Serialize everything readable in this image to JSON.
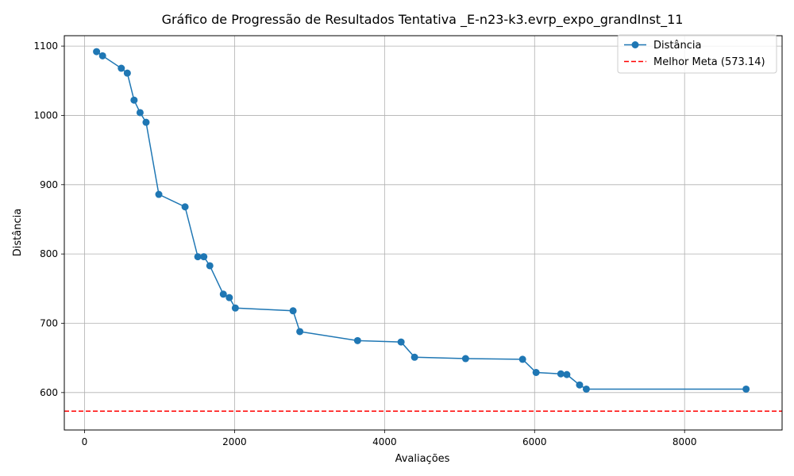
{
  "chart_data": {
    "type": "line",
    "title": "Gráfico de Progressão de Resultados Tentativa _E-n23-k3.evrp_expo_grandInst_11",
    "xlabel": "Avaliações",
    "ylabel": "Distância",
    "xlim": [
      -270,
      9300
    ],
    "ylim": [
      546,
      1115
    ],
    "xticks": [
      0,
      2000,
      4000,
      6000,
      8000
    ],
    "yticks": [
      600,
      700,
      800,
      900,
      1000,
      1100
    ],
    "grid": true,
    "legend_position": "top-right",
    "series": [
      {
        "name": "Distância",
        "color": "#1f77b4",
        "marker": "circle",
        "x": [
          160,
          240,
          490,
          570,
          660,
          740,
          820,
          990,
          1340,
          1510,
          1590,
          1670,
          1850,
          1930,
          2010,
          2780,
          2870,
          3640,
          4220,
          4400,
          5080,
          5840,
          6020,
          6350,
          6430,
          6600,
          6690,
          8820
        ],
        "y": [
          1092,
          1086,
          1068,
          1061,
          1022,
          1004,
          990,
          886,
          868,
          796,
          796,
          783,
          742,
          737,
          722,
          718,
          688,
          675,
          673,
          651,
          649,
          648,
          629,
          627,
          626,
          611,
          605,
          605
        ]
      }
    ],
    "reference_line": {
      "name": "Melhor Meta (573.14)",
      "value": 573.14,
      "color": "#ff0000",
      "style": "dashed"
    }
  }
}
